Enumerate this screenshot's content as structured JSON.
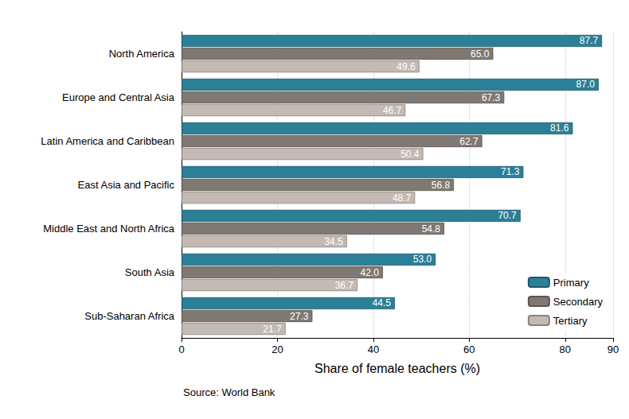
{
  "chart_data": {
    "type": "bar",
    "orientation": "horizontal",
    "xlabel": "Share of female teachers (%)",
    "annotations": [
      "Source: World Bank"
    ],
    "categories": [
      "North America",
      "Europe and Central Asia",
      "Latin America and Caribbean",
      "East Asia and Pacific",
      "Middle East and North Africa",
      "South Asia",
      "Sub-Saharan Africa"
    ],
    "series": [
      {
        "name": "Primary",
        "color": "#2b7f97",
        "values": [
          87.7,
          87.0,
          81.6,
          71.3,
          70.7,
          53.0,
          44.5
        ],
        "value_labels": [
          "87.7",
          "87.0",
          "81.6",
          "71.3",
          "70.7",
          "53.0",
          "44.5"
        ]
      },
      {
        "name": "Secondary",
        "color": "#807872",
        "values": [
          65.0,
          67.3,
          62.7,
          56.8,
          54.8,
          42.0,
          27.3
        ],
        "value_labels": [
          "65.0",
          "67.3",
          "62.7",
          "56.8",
          "54.8",
          "42.0",
          "27.3"
        ]
      },
      {
        "name": "Tertiary",
        "color": "#c4b9b3",
        "values": [
          49.6,
          46.7,
          50.4,
          48.7,
          34.5,
          36.7,
          21.7
        ],
        "value_labels": [
          "49.6",
          "46.7",
          "50.4",
          "48.7",
          "34.5",
          "36.7",
          "21.7"
        ]
      }
    ],
    "xlim": [
      0,
      90
    ],
    "xticks": [
      0,
      20,
      40,
      60,
      80
    ],
    "grid": true,
    "data_labels": true,
    "legend": "lower right"
  }
}
